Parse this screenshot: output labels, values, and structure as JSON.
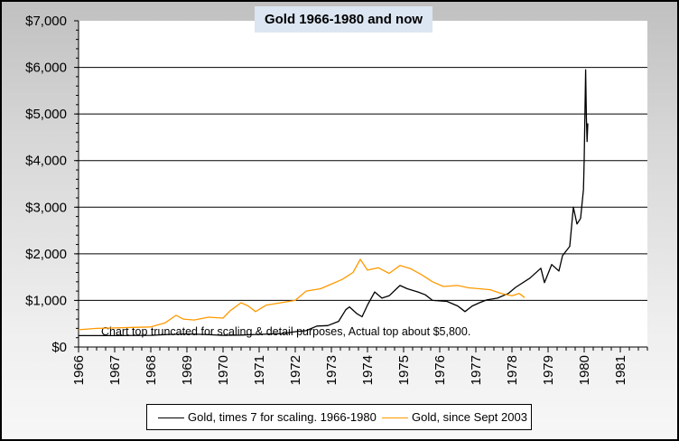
{
  "chart_data": {
    "type": "line",
    "title": "Gold 1966-1980 and now",
    "annotation": "Chart top truncated for scaling & detail purposes, Actual top about $5,800.",
    "xlabel": "",
    "ylabel": "",
    "xlim": [
      1966,
      1981.75
    ],
    "ylim": [
      0,
      7000
    ],
    "x_ticks": [
      "1966",
      "1967",
      "1968",
      "1969",
      "1970",
      "1971",
      "1972",
      "1973",
      "1974",
      "1975",
      "1976",
      "1977",
      "1978",
      "1979",
      "1980",
      "1981"
    ],
    "y_ticks": [
      "$0",
      "$1,000",
      "$2,000",
      "$3,000",
      "$4,000",
      "$5,000",
      "$6,000",
      "$7,000"
    ],
    "y_tick_values": [
      0,
      1000,
      2000,
      3000,
      4000,
      5000,
      6000,
      7000
    ],
    "grid": "horizontal major",
    "legend_placement": "bottom",
    "series": [
      {
        "name": "Gold, times 7 for scaling. 1966-1980",
        "color": "#000000",
        "points": [
          [
            1966,
            245
          ],
          [
            1967,
            245
          ],
          [
            1968,
            250
          ],
          [
            1968.5,
            270
          ],
          [
            1969,
            280
          ],
          [
            1969.5,
            270
          ],
          [
            1970,
            250
          ],
          [
            1970.5,
            255
          ],
          [
            1970.9,
            270
          ],
          [
            1971.3,
            280
          ],
          [
            1971.7,
            290
          ],
          [
            1972,
            330
          ],
          [
            1972.3,
            350
          ],
          [
            1972.6,
            450
          ],
          [
            1972.9,
            460
          ],
          [
            1973.2,
            550
          ],
          [
            1973.4,
            800
          ],
          [
            1973.5,
            860
          ],
          [
            1973.7,
            720
          ],
          [
            1973.85,
            650
          ],
          [
            1974,
            900
          ],
          [
            1974.2,
            1180
          ],
          [
            1974.4,
            1050
          ],
          [
            1974.6,
            1100
          ],
          [
            1974.9,
            1320
          ],
          [
            1975.1,
            1250
          ],
          [
            1975.4,
            1180
          ],
          [
            1975.6,
            1120
          ],
          [
            1975.8,
            1000
          ],
          [
            1976.2,
            980
          ],
          [
            1976.5,
            880
          ],
          [
            1976.7,
            760
          ],
          [
            1976.9,
            880
          ],
          [
            1977.1,
            950
          ],
          [
            1977.3,
            1010
          ],
          [
            1977.6,
            1050
          ],
          [
            1977.9,
            1150
          ],
          [
            1978.1,
            1280
          ],
          [
            1978.5,
            1480
          ],
          [
            1978.8,
            1690
          ],
          [
            1978.9,
            1380
          ],
          [
            1979.1,
            1770
          ],
          [
            1979.3,
            1630
          ],
          [
            1979.4,
            1960
          ],
          [
            1979.6,
            2160
          ],
          [
            1979.7,
            3000
          ],
          [
            1979.8,
            2640
          ],
          [
            1979.9,
            2760
          ],
          [
            1979.98,
            3380
          ],
          [
            1980.0,
            4020
          ],
          [
            1980.04,
            5950
          ],
          [
            1980.06,
            4940
          ],
          [
            1980.08,
            4410
          ],
          [
            1980.1,
            4800
          ]
        ]
      },
      {
        "name": "Gold, since Sept 2003",
        "color": "#ff9900",
        "points": [
          [
            1966,
            370
          ],
          [
            1966.5,
            400
          ],
          [
            1967,
            410
          ],
          [
            1967.5,
            420
          ],
          [
            1968,
            430
          ],
          [
            1968.4,
            520
          ],
          [
            1968.7,
            680
          ],
          [
            1968.9,
            600
          ],
          [
            1969.2,
            580
          ],
          [
            1969.6,
            640
          ],
          [
            1970,
            620
          ],
          [
            1970.2,
            780
          ],
          [
            1970.5,
            950
          ],
          [
            1970.7,
            880
          ],
          [
            1970.9,
            760
          ],
          [
            1971.2,
            900
          ],
          [
            1971.6,
            950
          ],
          [
            1972,
            1000
          ],
          [
            1972.3,
            1200
          ],
          [
            1972.7,
            1250
          ],
          [
            1973,
            1350
          ],
          [
            1973.3,
            1450
          ],
          [
            1973.6,
            1600
          ],
          [
            1973.8,
            1880
          ],
          [
            1974,
            1650
          ],
          [
            1974.3,
            1700
          ],
          [
            1974.6,
            1580
          ],
          [
            1974.9,
            1750
          ],
          [
            1975.2,
            1680
          ],
          [
            1975.5,
            1550
          ],
          [
            1975.8,
            1400
          ],
          [
            1976.1,
            1300
          ],
          [
            1976.5,
            1320
          ],
          [
            1976.8,
            1270
          ],
          [
            1977.1,
            1250
          ],
          [
            1977.4,
            1230
          ],
          [
            1977.7,
            1150
          ],
          [
            1978,
            1100
          ],
          [
            1978.2,
            1150
          ],
          [
            1978.35,
            1060
          ]
        ]
      }
    ]
  }
}
